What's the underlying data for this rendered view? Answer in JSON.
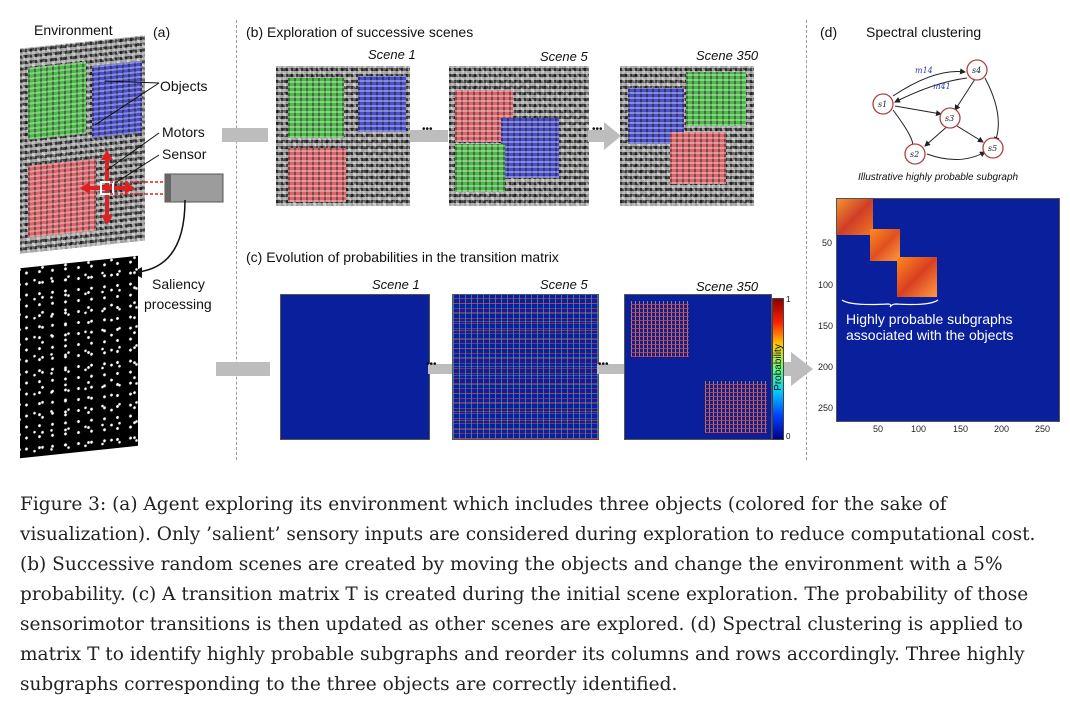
{
  "figure": {
    "panel_a": {
      "title": "Environment",
      "tag": "(a)",
      "objects_label": "Objects",
      "motors_label": "Motors",
      "sensor_label": "Sensor",
      "saliency_label_1": "Saliency",
      "saliency_label_2": "processing"
    },
    "panel_b": {
      "title": "(b) Exploration of successive scenes",
      "scenes": [
        "Scene 1",
        "Scene 5",
        "Scene 350"
      ],
      "ellipsis": "•••"
    },
    "panel_c": {
      "title": "(c) Evolution of probabilities in the transition matrix",
      "scenes": [
        "Scene 1",
        "Scene 5",
        "Scene 350"
      ],
      "colorbar_label": "Probability",
      "colorbar_max": "1",
      "colorbar_min": "0",
      "ellipsis": "•••"
    },
    "panel_d": {
      "tag": "(d)",
      "title": "Spectral clustering",
      "graph_nodes": [
        "s1",
        "s2",
        "s3",
        "s4",
        "s5"
      ],
      "edge_labels": [
        "m14",
        "m41"
      ],
      "graph_caption": "Illustrative highly probable subgraph",
      "heatmap_annotation_1": "Highly probable subgraphs",
      "heatmap_annotation_2": "associated with the objects",
      "y_ticks": [
        "50",
        "100",
        "150",
        "200",
        "250"
      ],
      "x_ticks": [
        "50",
        "100",
        "150",
        "200",
        "250"
      ]
    }
  },
  "caption_lines": [
    "Figure 3: (a) Agent exploring its environment which includes three objects (colored for the sake of",
    "visualization). Only ’salient’ sensory inputs are considered during exploration to reduce computational cost.",
    "(b) Successive random scenes are created by moving the objects and change the environment with a 5%",
    "probability. (c) A transition matrix T is created during the initial scene exploration. The probability of those",
    "sensorimotor transitions is then updated as other scenes are explored. (d) Spectral clustering is applied to",
    "matrix T to identify highly probable subgraphs and reorder its columns and rows accordingly. Three highly",
    "subgraphs corresponding to the three objects are correctly identified."
  ]
}
